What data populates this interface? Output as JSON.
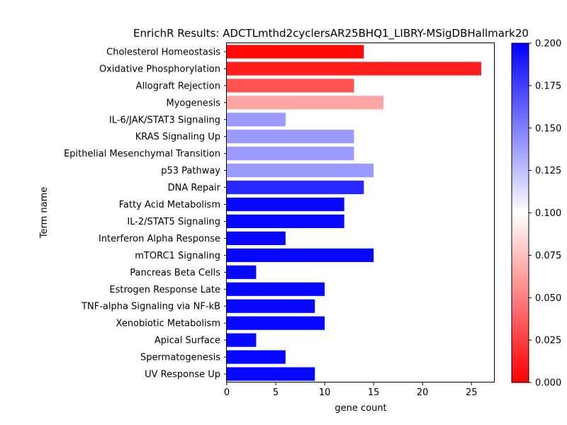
{
  "chart_data": {
    "type": "bar",
    "orientation": "horizontal",
    "title": "EnrichR Results: ADCTLmthd2cyclersAR25BHQ1_LIBRY-MSigDBHallmark20",
    "xlabel": "gene count",
    "ylabel": "Term name",
    "xlim": [
      0,
      27.3
    ],
    "xticks": [
      "0",
      "5",
      "10",
      "15",
      "20",
      "25"
    ],
    "grid": false,
    "categories": [
      "Cholesterol Homeostasis",
      "Oxidative Phosphorylation",
      "Allograft Rejection",
      "Myogenesis",
      "IL-6/JAK/STAT3 Signaling",
      "KRAS Signaling Up",
      "Epithelial Mesenchymal Transition",
      "p53 Pathway",
      "DNA Repair",
      "Fatty Acid Metabolism",
      "IL-2/STAT5 Signaling",
      "Interferon Alpha Response",
      "mTORC1 Signaling",
      "Pancreas Beta Cells",
      "Estrogen Response Late",
      "TNF-alpha Signaling via NF-kB",
      "Xenobiotic Metabolism",
      "Apical Surface",
      "Spermatogenesis",
      "UV Response Up"
    ],
    "values": [
      14,
      26,
      13,
      16,
      6,
      13,
      13,
      15,
      14,
      12,
      12,
      6,
      15,
      3,
      10,
      9,
      10,
      3,
      6,
      9
    ],
    "color_values": [
      0.003,
      0.012,
      0.032,
      0.065,
      0.14,
      0.14,
      0.14,
      0.14,
      0.185,
      0.197,
      0.197,
      0.197,
      0.197,
      0.197,
      0.197,
      0.197,
      0.197,
      0.197,
      0.197,
      0.197
    ],
    "colorbar": {
      "range": [
        0.0,
        0.2
      ],
      "ticks": [
        "0.000",
        "0.025",
        "0.050",
        "0.075",
        "0.100",
        "0.125",
        "0.150",
        "0.175",
        "0.200"
      ],
      "colormap": [
        "#ff0000",
        "#ffffff",
        "#0000ff"
      ]
    }
  }
}
